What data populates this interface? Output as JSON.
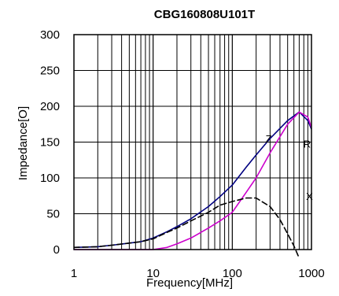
{
  "chart_data": {
    "type": "line",
    "title": "CBG160808U101T",
    "xlabel": "Frequency[MHz]",
    "ylabel": "Impedance[O]",
    "xscale": "log",
    "xlim": [
      1,
      1000
    ],
    "ylim": [
      0,
      300
    ],
    "x_ticks": [
      1,
      10,
      100,
      1000
    ],
    "x_tick_labels": [
      "1",
      "10",
      "100",
      "1000"
    ],
    "y_ticks": [
      0,
      50,
      100,
      150,
      200,
      250,
      300
    ],
    "y_tick_labels": [
      "0",
      "50",
      "100",
      "150",
      "200",
      "250",
      "300"
    ],
    "grid": true,
    "legend": "none",
    "series": [
      {
        "name": "Z",
        "color": "#000080",
        "style": "solid",
        "points": [
          [
            1,
            3
          ],
          [
            2,
            4
          ],
          [
            3,
            6
          ],
          [
            5,
            9
          ],
          [
            7,
            11
          ],
          [
            10,
            16
          ],
          [
            15,
            25
          ],
          [
            20,
            32
          ],
          [
            30,
            43
          ],
          [
            50,
            60
          ],
          [
            70,
            74
          ],
          [
            100,
            90
          ],
          [
            150,
            115
          ],
          [
            200,
            132
          ],
          [
            300,
            155
          ],
          [
            500,
            180
          ],
          [
            700,
            192
          ],
          [
            900,
            180
          ],
          [
            1000,
            168
          ]
        ]
      },
      {
        "name": "R",
        "color": "#cc00cc",
        "style": "solid",
        "points": [
          [
            1,
            0
          ],
          [
            5,
            0
          ],
          [
            10,
            0
          ],
          [
            15,
            3
          ],
          [
            20,
            8
          ],
          [
            30,
            16
          ],
          [
            50,
            30
          ],
          [
            70,
            40
          ],
          [
            100,
            52
          ],
          [
            150,
            80
          ],
          [
            200,
            100
          ],
          [
            300,
            135
          ],
          [
            500,
            175
          ],
          [
            700,
            192
          ],
          [
            900,
            185
          ],
          [
            1000,
            170
          ]
        ]
      },
      {
        "name": "X",
        "color": "#000000",
        "style": "dashed",
        "points": [
          [
            1,
            3
          ],
          [
            2,
            4
          ],
          [
            3,
            6
          ],
          [
            5,
            9
          ],
          [
            7,
            11
          ],
          [
            10,
            15
          ],
          [
            15,
            24
          ],
          [
            20,
            30
          ],
          [
            30,
            40
          ],
          [
            50,
            52
          ],
          [
            70,
            62
          ],
          [
            100,
            67
          ],
          [
            150,
            72
          ],
          [
            200,
            72
          ],
          [
            300,
            60
          ],
          [
            400,
            42
          ],
          [
            500,
            22
          ],
          [
            600,
            5
          ],
          [
            700,
            -12
          ]
        ]
      }
    ]
  }
}
